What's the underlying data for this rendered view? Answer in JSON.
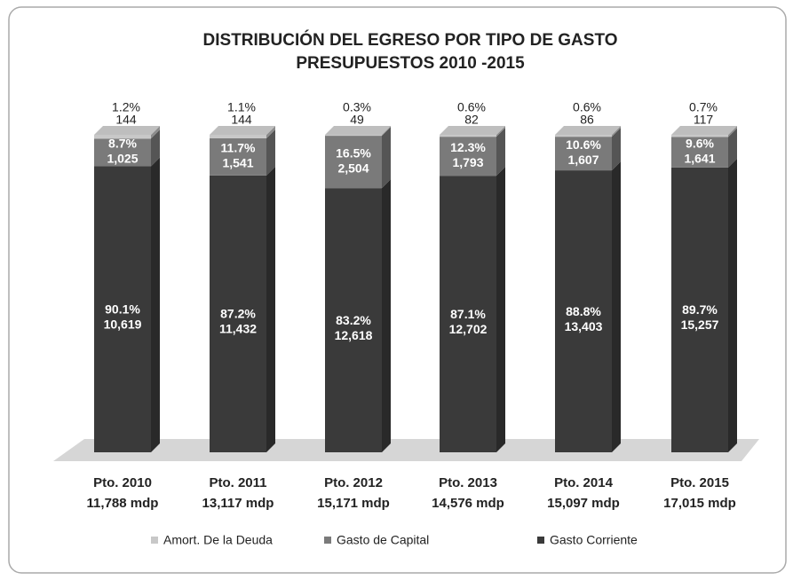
{
  "chart_data": {
    "type": "stacked-bar-3d",
    "title": "DISTRIBUCIÓN DEL EGRESO POR TIPO DE GASTO",
    "subtitle": "PRESUPUESTOS  2010 -2015",
    "categories": [
      "Pto. 2010",
      "Pto. 2011",
      "Pto. 2012",
      "Pto. 2013",
      "Pto. 2014",
      "Pto. 2015"
    ],
    "totals": [
      "11,788 mdp",
      "13,117 mdp",
      "15,171 mdp",
      "14,576 mdp",
      "15,097 mdp",
      "17,015 mdp"
    ],
    "ylim": [
      0,
      100
    ],
    "series": [
      {
        "name": "Gasto Corriente",
        "color": "#3a3a3a",
        "values": [
          10619,
          11432,
          12618,
          12702,
          13403,
          15257
        ],
        "value_labels": [
          "10,619",
          "11,432",
          "12,618",
          "12,702",
          "13,403",
          "15,257"
        ],
        "percents": [
          90.1,
          87.2,
          83.2,
          87.1,
          88.8,
          89.7
        ],
        "percent_labels": [
          "90.1%",
          "87.2%",
          "83.2%",
          "87.1%",
          "88.8%",
          "89.7%"
        ]
      },
      {
        "name": "Gasto de Capital",
        "color": "#7a7a7a",
        "values": [
          1025,
          1541,
          2504,
          1793,
          1607,
          1641
        ],
        "value_labels": [
          "1,025",
          "1,541",
          "2,504",
          "1,793",
          "1,607",
          "1,641"
        ],
        "percents": [
          8.7,
          11.7,
          16.5,
          12.3,
          10.6,
          9.6
        ],
        "percent_labels": [
          "8.7%",
          "11.7%",
          "16.5%",
          "12.3%",
          "10.6%",
          "9.6%"
        ]
      },
      {
        "name": "Amort. De la Deuda",
        "color": "#c8c8c8",
        "values": [
          144,
          144,
          49,
          82,
          86,
          117
        ],
        "value_labels": [
          "144",
          "144",
          "49",
          "82",
          "86",
          "117"
        ],
        "percents": [
          1.2,
          1.1,
          0.3,
          0.6,
          0.6,
          0.7
        ],
        "percent_labels": [
          "1.2%",
          "1.1%",
          "0.3%",
          "0.6%",
          "0.6%",
          "0.7%"
        ]
      }
    ]
  }
}
